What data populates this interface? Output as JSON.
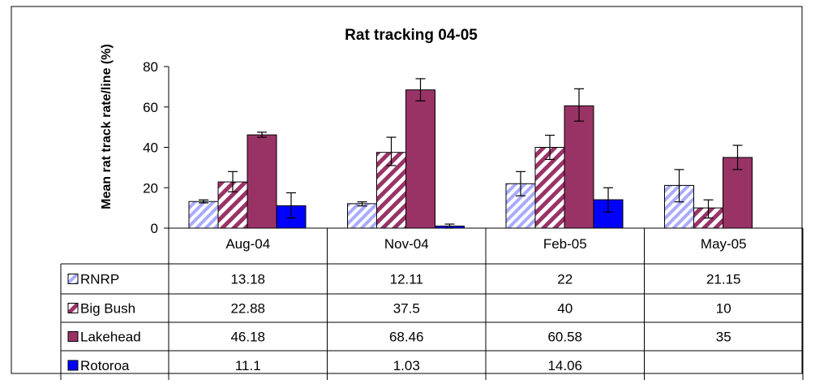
{
  "chart_data": {
    "type": "bar",
    "title": "Rat tracking 04-05",
    "xlabel": "",
    "ylabel": "Mean rat track rate/line (%)",
    "ylim": [
      0,
      80
    ],
    "yticks": [
      0,
      20,
      40,
      60,
      80
    ],
    "grid": false,
    "legend": "in data table (left)",
    "categories": [
      "Aug-04",
      "Nov-04",
      "Feb-05",
      "May-05"
    ],
    "series": [
      {
        "name": "RNRP",
        "pattern": "light-diagonal",
        "color": "#9999ff",
        "values": [
          13.18,
          12.11,
          22,
          21.15
        ],
        "table_values": [
          "13.18",
          "12.11",
          "22",
          "21.15"
        ],
        "err_low": [
          12.5,
          11,
          16,
          13
        ],
        "err_high": [
          14,
          13,
          28,
          29
        ]
      },
      {
        "name": "Big Bush",
        "pattern": "wide-diagonal",
        "color": "#993366",
        "values": [
          22.88,
          37.5,
          40,
          10
        ],
        "table_values": [
          "22.88",
          "37.5",
          "40",
          "10"
        ],
        "err_low": [
          18,
          31,
          34,
          5
        ],
        "err_high": [
          28,
          45,
          46,
          14
        ]
      },
      {
        "name": "Lakehead",
        "pattern": "solid",
        "color": "#993366",
        "values": [
          46.18,
          68.46,
          60.58,
          35
        ],
        "table_values": [
          "46.18",
          "68.46",
          "60.58",
          "35"
        ],
        "err_low": [
          45,
          63,
          53,
          29
        ],
        "err_high": [
          47.5,
          74,
          69,
          41
        ]
      },
      {
        "name": "Rotoroa",
        "pattern": "solid",
        "color": "#0000ff",
        "values": [
          11.1,
          1.03,
          14.06,
          null
        ],
        "table_values": [
          "11.1",
          "1.03",
          "14.06",
          ""
        ],
        "err_low": [
          5,
          0,
          8,
          null
        ],
        "err_high": [
          17.5,
          2,
          20,
          null
        ]
      }
    ]
  }
}
